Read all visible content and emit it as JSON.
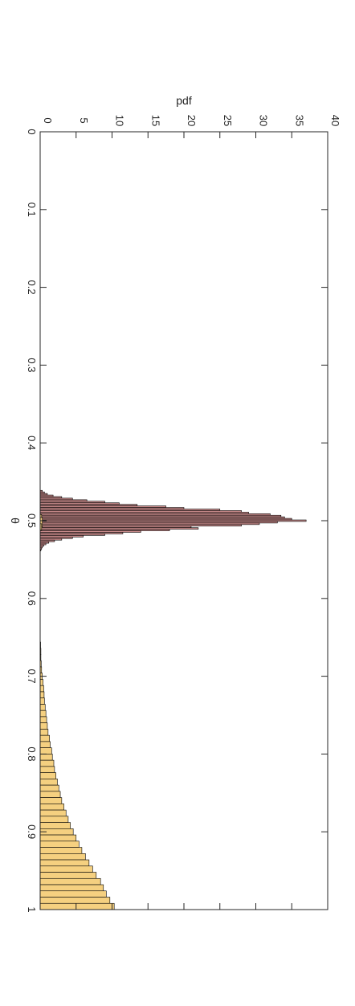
{
  "chart_data": {
    "type": "bar",
    "title": "",
    "xlabel": "θ",
    "ylabel": "pdf",
    "xlim": [
      0,
      1
    ],
    "ylim": [
      0,
      40
    ],
    "x_ticks": [
      "0",
      "0.1",
      "0.2",
      "0.3",
      "0.4",
      "0.5",
      "0.6",
      "0.7",
      "0.8",
      "0.9",
      "1"
    ],
    "y_ticks": [
      "0",
      "5",
      "10",
      "15",
      "20",
      "25",
      "30",
      "35",
      "40"
    ],
    "grid": false,
    "legend": "none",
    "orientation": "rotated-90",
    "colors": {
      "series1": "#c98b8b",
      "series2": "#f5d080",
      "edge": "#000000",
      "axis": "#262626"
    },
    "series": [
      {
        "bin_width": 0.002,
        "x": [
          0.462,
          0.464,
          0.466,
          0.468,
          0.47,
          0.472,
          0.474,
          0.476,
          0.478,
          0.48,
          0.482,
          0.484,
          0.486,
          0.488,
          0.49,
          0.492,
          0.494,
          0.496,
          0.498,
          0.5,
          0.502,
          0.504,
          0.506,
          0.508,
          0.51,
          0.512,
          0.514,
          0.516,
          0.518,
          0.52,
          0.522,
          0.524,
          0.526,
          0.528,
          0.53,
          0.532,
          0.534,
          0.536,
          0.538
        ],
        "values": [
          0.3,
          0.6,
          1.0,
          1.8,
          3.0,
          4.5,
          6.5,
          9.0,
          11.0,
          13.5,
          17.5,
          20.0,
          25.0,
          28.0,
          29.0,
          32.0,
          33.5,
          34.0,
          35.0,
          37.0,
          33.0,
          30.5,
          28.0,
          21.0,
          22.0,
          18.0,
          14.0,
          11.5,
          9.0,
          6.0,
          4.5,
          3.0,
          2.0,
          1.2,
          0.8,
          0.5,
          0.3,
          0.2,
          0.1
        ]
      },
      {
        "bin_width": 0.008,
        "x": [
          0.496,
          0.5,
          0.504,
          0.508,
          0.66,
          0.668,
          0.676,
          0.684,
          0.692,
          0.7,
          0.708,
          0.716,
          0.724,
          0.732,
          0.74,
          0.748,
          0.756,
          0.764,
          0.772,
          0.78,
          0.788,
          0.796,
          0.804,
          0.812,
          0.82,
          0.828,
          0.836,
          0.844,
          0.852,
          0.86,
          0.868,
          0.876,
          0.884,
          0.892,
          0.9,
          0.908,
          0.916,
          0.924,
          0.932,
          0.94,
          0.948,
          0.956,
          0.964,
          0.972,
          0.98,
          0.988,
          0.996
        ],
        "values": [
          0.2,
          0.3,
          0.3,
          0.2,
          0.05,
          0.1,
          0.1,
          0.15,
          0.2,
          0.3,
          0.4,
          0.5,
          0.55,
          0.6,
          0.7,
          0.8,
          0.9,
          1.0,
          1.1,
          1.3,
          1.4,
          1.6,
          1.7,
          1.9,
          2.0,
          2.2,
          2.4,
          2.6,
          2.8,
          3.0,
          3.3,
          3.6,
          3.9,
          4.2,
          4.6,
          5.0,
          5.4,
          5.8,
          6.3,
          6.8,
          7.3,
          7.8,
          8.4,
          8.8,
          9.2,
          9.7,
          10.3
        ]
      }
    ]
  }
}
